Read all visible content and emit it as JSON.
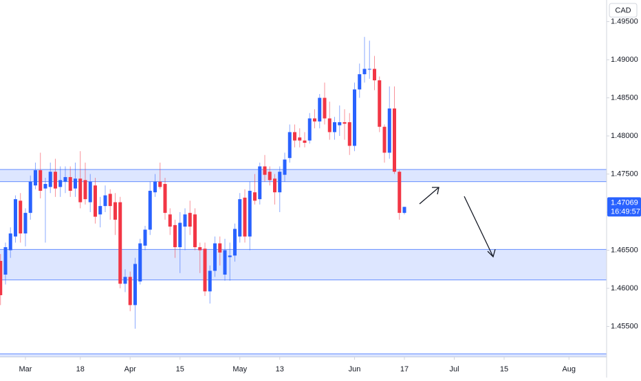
{
  "chart_data": {
    "type": "candlestick",
    "currency": "CAD",
    "price_label": "1.47069",
    "countdown": "16:49:57",
    "up_color": "#2962ff",
    "down_color": "#f23645",
    "zone_color": "#2962ff",
    "grid": false,
    "x": [
      -5,
      -4,
      -3,
      -2,
      -1,
      0,
      1,
      2,
      3,
      4,
      5,
      6,
      7,
      8,
      9,
      10,
      11,
      12,
      13,
      14,
      15,
      16,
      17,
      18,
      19,
      20,
      21,
      22,
      23,
      24,
      25,
      26,
      27,
      28,
      29,
      30,
      31,
      32,
      33,
      34,
      35,
      36,
      37,
      38,
      39,
      40,
      41,
      42,
      43,
      44,
      45,
      46,
      47,
      48,
      49,
      50,
      51,
      52,
      53,
      54,
      55,
      56,
      57,
      58,
      59,
      60,
      61,
      62,
      63,
      64,
      65,
      66,
      67,
      68,
      69,
      70,
      71,
      72,
      73,
      74,
      75,
      76
    ],
    "open": [
      1.4636,
      1.4618,
      1.465,
      1.4668,
      1.4715,
      1.4672,
      1.4699,
      1.4735,
      1.4755,
      1.4731,
      1.4733,
      1.4753,
      1.4733,
      1.474,
      1.4746,
      1.4731,
      1.4744,
      1.4742,
      1.4713,
      1.4735,
      1.4697,
      1.4708,
      1.4724,
      1.4713,
      1.4713,
      1.4606,
      1.4615,
      1.4578,
      1.4609,
      1.4656,
      1.4677,
      1.4726,
      1.474,
      1.4737,
      1.4697,
      1.4683,
      1.4654,
      1.4681,
      1.4699,
      1.4697,
      1.4654,
      1.4652,
      1.4596,
      1.4623,
      1.4659,
      1.4618,
      1.4641,
      1.4643,
      1.4668,
      1.4719,
      1.4668,
      1.4726,
      1.4717,
      1.476,
      1.4753,
      1.4744,
      1.4726,
      1.4749,
      1.4771,
      1.4805,
      1.4798,
      1.4794,
      1.4794,
      1.4823,
      1.4819,
      1.485,
      1.4823,
      1.4805,
      1.4814,
      1.4818,
      1.4818,
      1.4787,
      1.4861,
      1.4881,
      1.4887,
      1.4888,
      1.4873,
      1.4812,
      1.4778,
      1.4836,
      1.4753,
      1.4699
    ],
    "high": [
      1.4645,
      1.466,
      1.468,
      1.4722,
      1.4725,
      1.4705,
      1.4748,
      1.4765,
      1.4778,
      1.4745,
      1.4765,
      1.477,
      1.476,
      1.476,
      1.476,
      1.4765,
      1.478,
      1.4765,
      1.475,
      1.4745,
      1.472,
      1.4735,
      1.473,
      1.4725,
      1.472,
      1.4625,
      1.4622,
      1.464,
      1.4665,
      1.4682,
      1.474,
      1.475,
      1.4765,
      1.4745,
      1.4705,
      1.469,
      1.47,
      1.4705,
      1.4715,
      1.4705,
      1.466,
      1.466,
      1.463,
      1.4668,
      1.4668,
      1.4665,
      1.466,
      1.4685,
      1.4725,
      1.473,
      1.474,
      1.475,
      1.4765,
      1.4775,
      1.476,
      1.475,
      1.476,
      1.4778,
      1.4815,
      1.4815,
      1.481,
      1.4805,
      1.483,
      1.4835,
      1.4855,
      1.487,
      1.4845,
      1.4825,
      1.484,
      1.4835,
      1.483,
      1.487,
      1.4895,
      1.493,
      1.4925,
      1.4905,
      1.4878,
      1.4815,
      1.4865,
      1.4865,
      1.4755,
      1.4707
    ],
    "low": [
      1.4578,
      1.4605,
      1.464,
      1.466,
      1.466,
      1.4655,
      1.469,
      1.473,
      1.4718,
      1.466,
      1.4725,
      1.472,
      1.472,
      1.4725,
      1.472,
      1.472,
      1.4705,
      1.471,
      1.47,
      1.4685,
      1.468,
      1.47,
      1.469,
      1.467,
      1.46,
      1.4595,
      1.457,
      1.4547,
      1.4605,
      1.465,
      1.467,
      1.472,
      1.473,
      1.469,
      1.467,
      1.464,
      1.462,
      1.465,
      1.467,
      1.465,
      1.462,
      1.459,
      1.458,
      1.4615,
      1.463,
      1.461,
      1.461,
      1.4635,
      1.466,
      1.466,
      1.465,
      1.471,
      1.471,
      1.474,
      1.4735,
      1.471,
      1.47,
      1.474,
      1.4765,
      1.4785,
      1.4785,
      1.4785,
      1.479,
      1.481,
      1.481,
      1.4815,
      1.4795,
      1.4795,
      1.48,
      1.4795,
      1.4775,
      1.478,
      1.485,
      1.487,
      1.4875,
      1.486,
      1.4805,
      1.4765,
      1.477,
      1.475,
      1.469,
      1.4697
    ],
    "close": [
      1.4591,
      1.4654,
      1.4672,
      1.4717,
      1.4672,
      1.4699,
      1.474,
      1.4755,
      1.4728,
      1.4737,
      1.4753,
      1.4731,
      1.4742,
      1.4746,
      1.4728,
      1.4744,
      1.4713,
      1.4717,
      1.474,
      1.4694,
      1.4708,
      1.4722,
      1.4708,
      1.469,
      1.4606,
      1.4615,
      1.4578,
      1.4632,
      1.4659,
      1.4677,
      1.4728,
      1.474,
      1.4733,
      1.4699,
      1.4681,
      1.4654,
      1.4686,
      1.4697,
      1.4681,
      1.4654,
      1.465,
      1.4596,
      1.4623,
      1.4659,
      1.4647,
      1.465,
      1.4643,
      1.4678,
      1.4717,
      1.4668,
      1.4728,
      1.4715,
      1.476,
      1.4749,
      1.4742,
      1.4726,
      1.4753,
      1.4769,
      1.4805,
      1.4794,
      1.4794,
      1.4791,
      1.4823,
      1.4819,
      1.485,
      1.4823,
      1.4805,
      1.4818,
      1.4818,
      1.4816,
      1.4787,
      1.4861,
      1.4881,
      1.4888,
      1.4888,
      1.4873,
      1.4812,
      1.4778,
      1.4836,
      1.4753,
      1.4699,
      1.47069
    ],
    "zones": [
      {
        "from": 1.474,
        "to": 1.4756
      },
      {
        "from": 1.4611,
        "to": 1.4651
      },
      {
        "from": 1.451,
        "to": 1.4514
      }
    ],
    "xlim": [
      -5.1,
      116.55
    ],
    "xticks": [
      {
        "value": 0,
        "label": "Mar"
      },
      {
        "value": 11,
        "label": "18"
      },
      {
        "value": 21,
        "label": "Apr"
      },
      {
        "value": 31,
        "label": "15"
      },
      {
        "value": 43,
        "label": "May"
      },
      {
        "value": 51,
        "label": "13"
      },
      {
        "value": 66,
        "label": "Jun"
      },
      {
        "value": 76,
        "label": "17"
      },
      {
        "value": 86,
        "label": "Jul"
      },
      {
        "value": 96,
        "label": "15"
      },
      {
        "value": 109,
        "label": "Aug"
      }
    ],
    "ylim": [
      1.45099,
      1.49784
    ],
    "yticks": [
      {
        "value": 1.455,
        "label": "1.45500"
      },
      {
        "value": 1.46,
        "label": "1.46000"
      },
      {
        "value": 1.465,
        "label": "1.46500"
      },
      {
        "value": 1.47,
        "label": "1.47000"
      },
      {
        "value": 1.475,
        "label": "1.47500"
      },
      {
        "value": 1.48,
        "label": "1.48000"
      },
      {
        "value": 1.485,
        "label": "1.48500"
      },
      {
        "value": 1.49,
        "label": "1.49000"
      },
      {
        "value": 1.495,
        "label": "1.49500"
      }
    ]
  }
}
